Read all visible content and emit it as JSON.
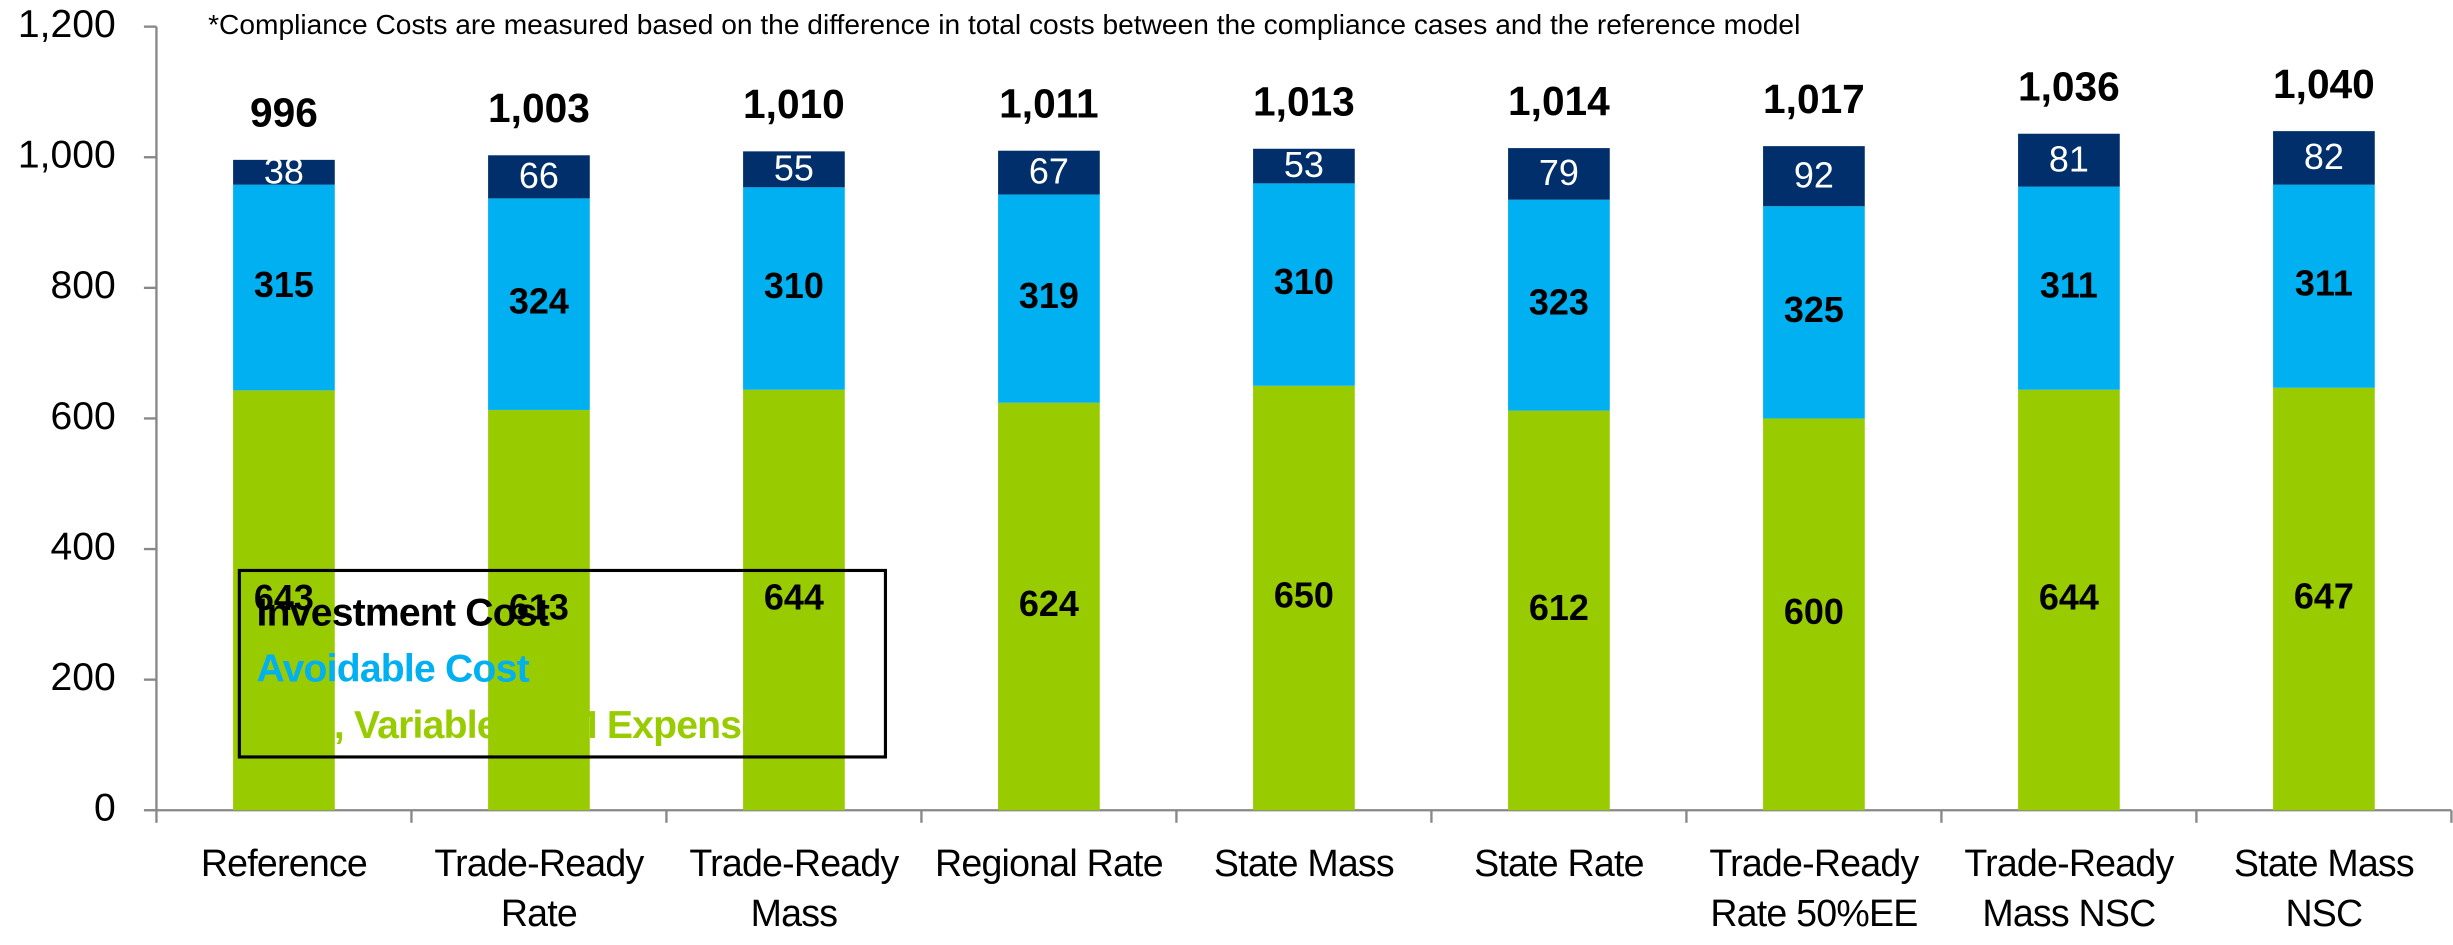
{
  "chart_data": {
    "type": "stacked_bar",
    "note": "*Compliance Costs are measured based on the difference in total costs between the compliance cases and the reference model",
    "categories": [
      "Reference",
      "Trade-Ready Rate",
      "Trade-Ready Mass",
      "Regional Rate",
      "State Mass",
      "State Rate",
      "Trade-Ready Rate 50%EE",
      "Trade-Ready Mass NSC",
      "State Mass NSC"
    ],
    "series": [
      {
        "name": "Investment Cost",
        "color": "#002f6c",
        "label_color": "#ffffff",
        "values": [
          38,
          66,
          55,
          67,
          53,
          79,
          92,
          81,
          82
        ]
      },
      {
        "name": "Avoidable Cost",
        "color": "#00b0f0",
        "label_color": "#000000",
        "values": [
          315,
          324,
          310,
          319,
          310,
          323,
          325,
          311,
          311
        ]
      },
      {
        "name": "Fuel, Variable O&M Expense",
        "color": "#99cc00",
        "label_color": "#000000",
        "values": [
          643,
          613,
          644,
          624,
          650,
          612,
          600,
          644,
          647
        ]
      }
    ],
    "totals": {
      "values": [
        996,
        1003,
        1010,
        1011,
        1013,
        1014,
        1017,
        1036,
        1040
      ],
      "value_labels": [
        "996",
        "1,003",
        "1,010",
        "1,011",
        "1,013",
        "1,014",
        "1,017",
        "1,036",
        "1,040"
      ]
    },
    "ylim": [
      0,
      1200
    ],
    "yticks": [
      0,
      200,
      400,
      600,
      800,
      {
        "value": 1000,
        "label": "1,000"
      },
      {
        "value": 1200,
        "label": "1,200"
      }
    ],
    "legend": "lower-left"
  }
}
